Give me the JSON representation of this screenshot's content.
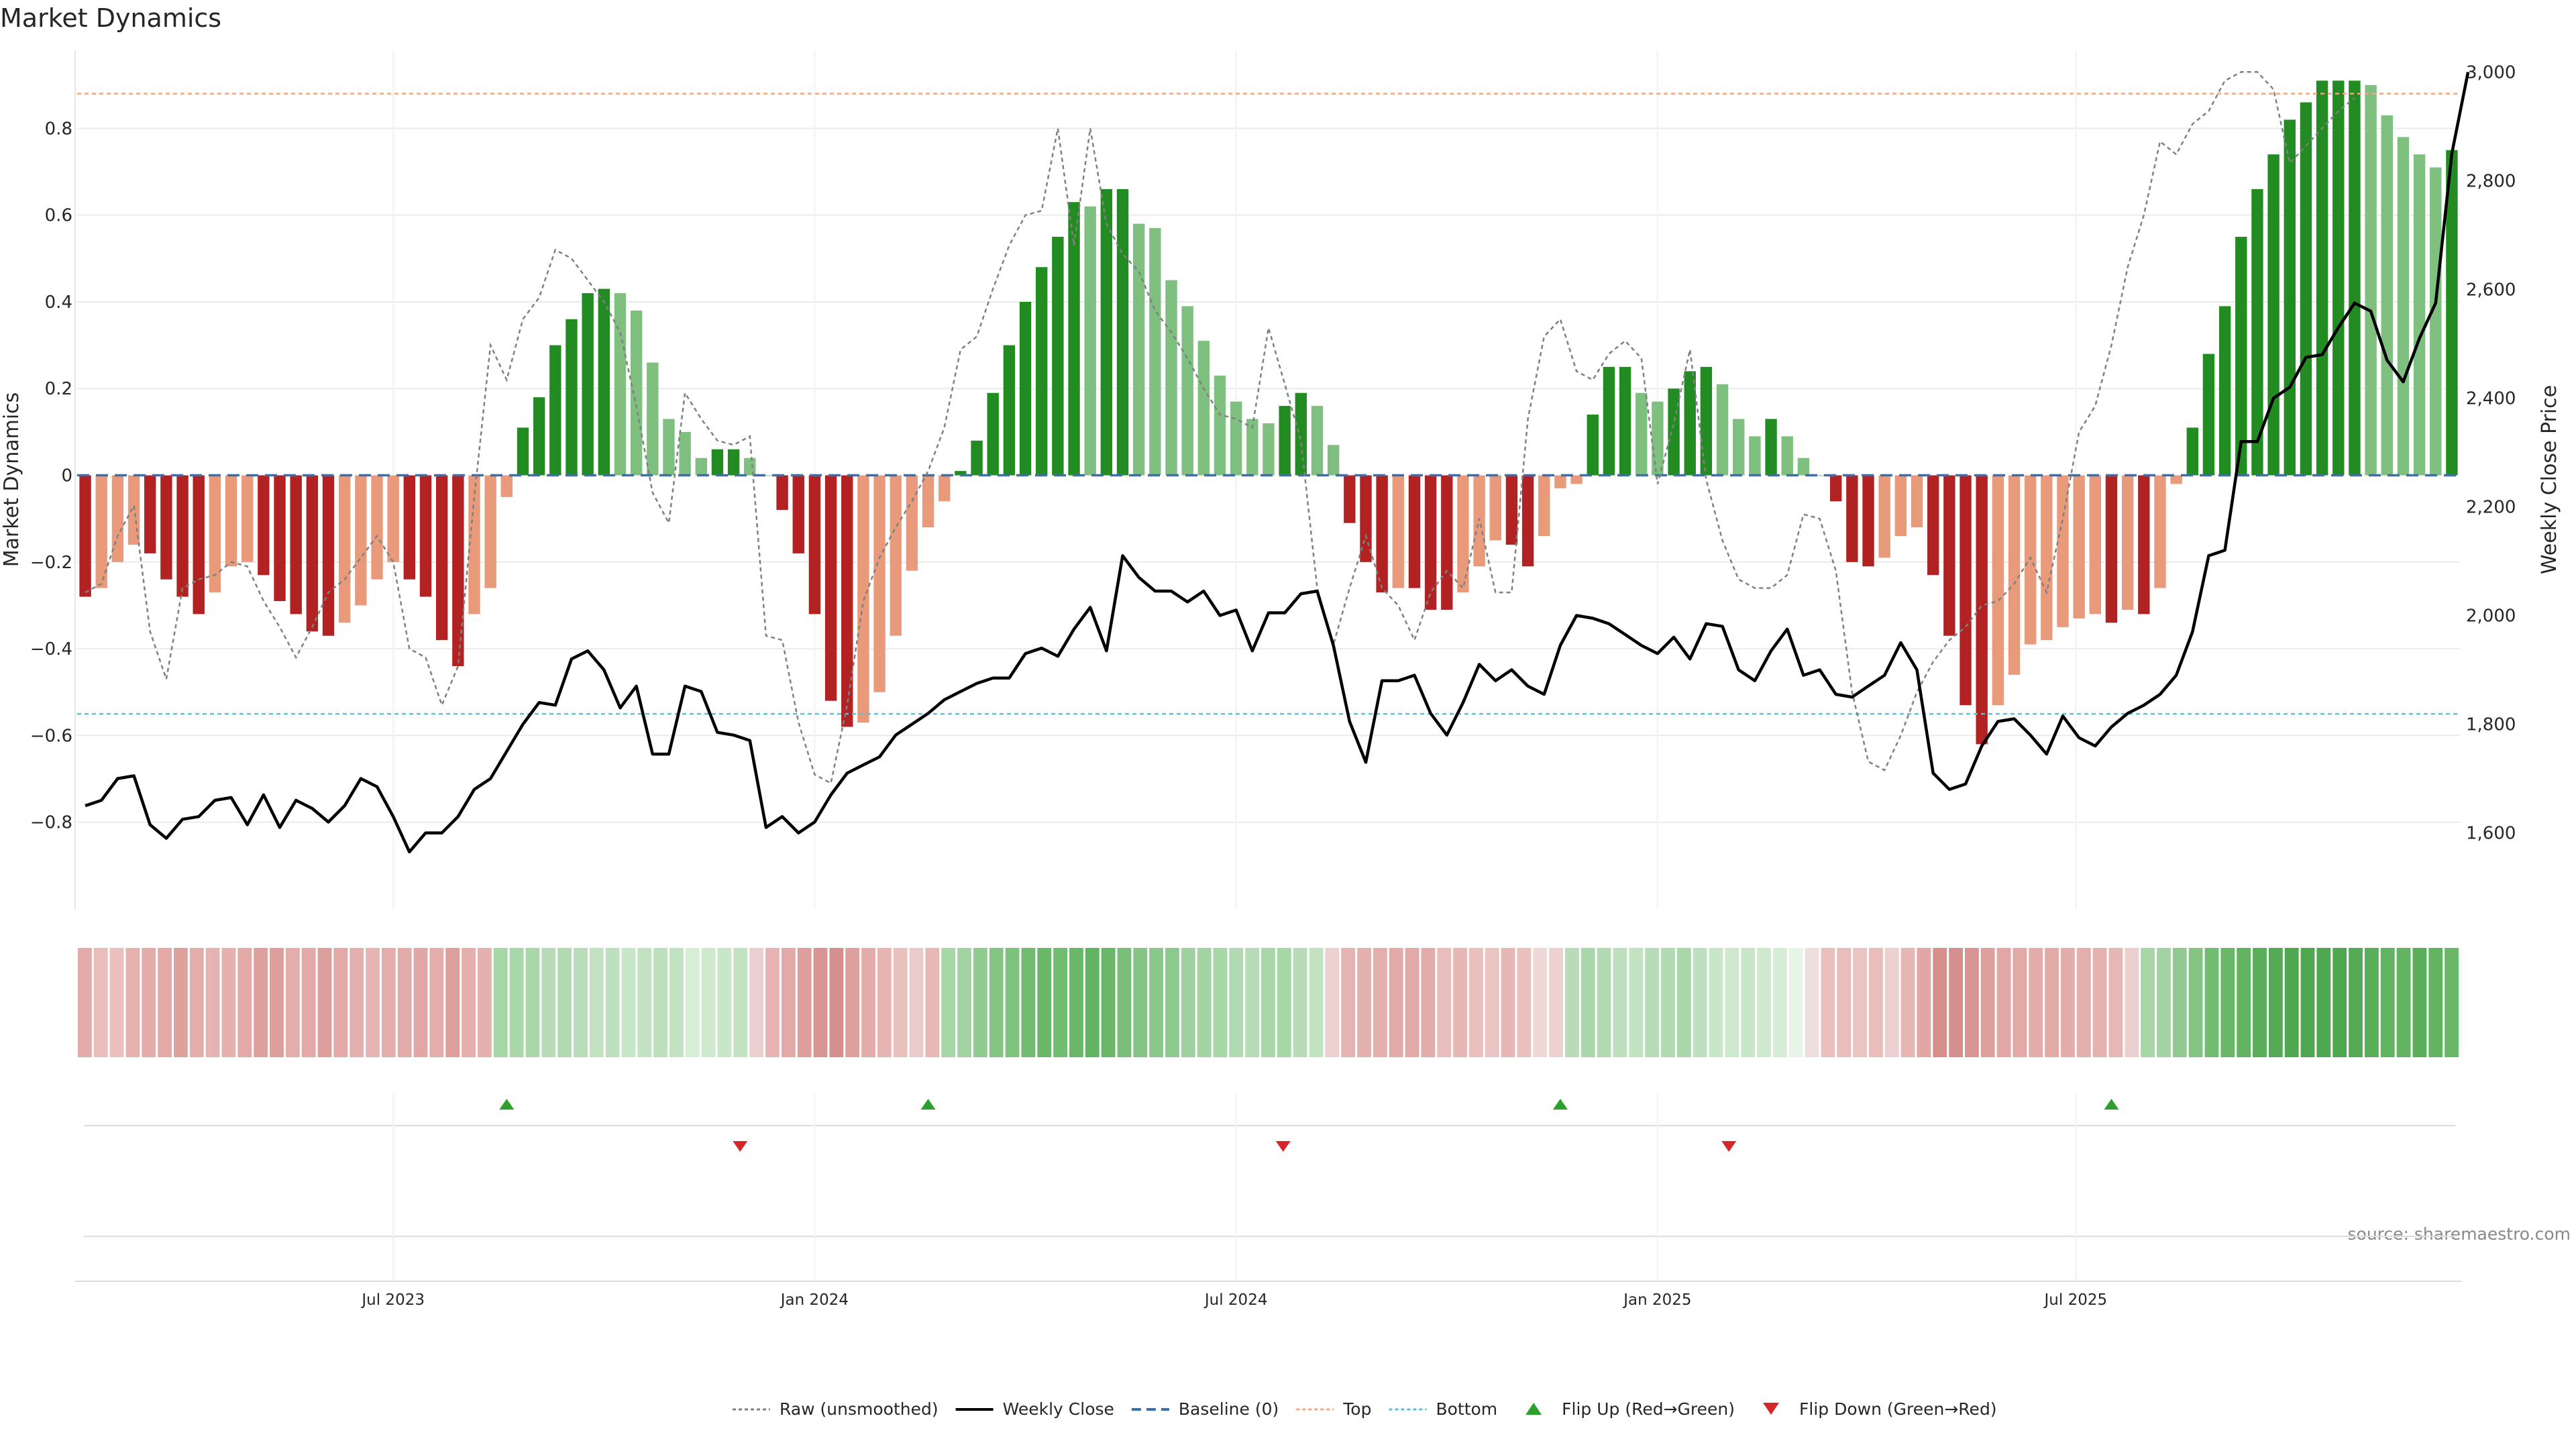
{
  "chart_data": {
    "type": "bar",
    "title": "Market Dynamics",
    "source": "source: sharemaestro.com",
    "ylabel_left": "Market Dynamics",
    "ylabel_right": "Weekly Close Price",
    "ylim_left": [
      -1.0,
      0.98
    ],
    "ylim_right": [
      1460,
      3040
    ],
    "left_ticks": [
      0.8,
      0.6,
      0.4,
      0.2,
      0,
      -0.2,
      -0.4,
      -0.6,
      -0.8
    ],
    "left_tick_labels": [
      "0.8",
      "0.6",
      "0.4",
      "0.2",
      "0",
      "−0.2",
      "−0.4",
      "−0.6",
      "−0.8"
    ],
    "right_ticks": [
      3000,
      2800,
      2600,
      2400,
      2200,
      2000,
      1800,
      1600
    ],
    "right_tick_labels": [
      "3,000",
      "2,800",
      "2,600",
      "2,400",
      "2,200",
      "2,000",
      "1,800",
      "1,600"
    ],
    "x_ticks": [
      {
        "label": "Jul 2023",
        "week": 19.5
      },
      {
        "label": "Jan 2024",
        "week": 45.5
      },
      {
        "label": "Jul 2024",
        "week": 71.5
      },
      {
        "label": "Jan 2025",
        "week": 97.5
      },
      {
        "label": "Jul 2025",
        "week": 123.3
      }
    ],
    "top_line": 0.88,
    "bottom_line": -0.55,
    "baseline": 0,
    "bar_values": [
      -0.28,
      -0.26,
      -0.2,
      -0.16,
      -0.18,
      -0.24,
      -0.28,
      -0.32,
      -0.27,
      -0.21,
      -0.2,
      -0.23,
      -0.29,
      -0.32,
      -0.36,
      -0.37,
      -0.34,
      -0.3,
      -0.24,
      -0.2,
      -0.24,
      -0.28,
      -0.38,
      -0.44,
      -0.32,
      -0.26,
      -0.05,
      0.11,
      0.18,
      0.3,
      0.36,
      0.42,
      0.43,
      0.42,
      0.38,
      0.26,
      0.13,
      0.1,
      0.04,
      0.06,
      0.06,
      0.04,
      0,
      -0.08,
      -0.18,
      -0.32,
      -0.52,
      -0.58,
      -0.57,
      -0.5,
      -0.37,
      -0.22,
      -0.12,
      -0.06,
      0.01,
      0.08,
      0.19,
      0.3,
      0.4,
      0.48,
      0.55,
      0.63,
      0.62,
      0.66,
      0.66,
      0.58,
      0.57,
      0.45,
      0.39,
      0.31,
      0.23,
      0.17,
      0.13,
      0.12,
      0.16,
      0.19,
      0.16,
      0.07,
      -0.11,
      -0.2,
      -0.27,
      -0.26,
      -0.26,
      -0.31,
      -0.31,
      -0.27,
      -0.21,
      -0.15,
      -0.16,
      -0.21,
      -0.14,
      -0.03,
      -0.02,
      0.14,
      0.25,
      0.25,
      0.19,
      0.17,
      0.2,
      0.24,
      0.25,
      0.21,
      0.13,
      0.09,
      0.13,
      0.09,
      0.04,
      0,
      -0.06,
      -0.2,
      -0.21,
      -0.19,
      -0.14,
      -0.12,
      -0.23,
      -0.37,
      -0.53,
      -0.62,
      -0.53,
      -0.46,
      -0.39,
      -0.38,
      -0.35,
      -0.33,
      -0.32,
      -0.34,
      -0.31,
      -0.32,
      -0.26,
      -0.02,
      0.11,
      0.28,
      0.39,
      0.55,
      0.66,
      0.74,
      0.82,
      0.86,
      0.91,
      0.91,
      0.91,
      0.9,
      0.83,
      0.78,
      0.74,
      0.71,
      0.75
    ],
    "raw_values": [
      -0.27,
      -0.25,
      -0.14,
      -0.07,
      -0.36,
      -0.47,
      -0.26,
      -0.24,
      -0.23,
      -0.2,
      -0.21,
      -0.29,
      -0.35,
      -0.42,
      -0.35,
      -0.27,
      -0.24,
      -0.19,
      -0.14,
      -0.2,
      -0.4,
      -0.42,
      -0.53,
      -0.44,
      -0.05,
      0.3,
      0.22,
      0.36,
      0.41,
      0.52,
      0.5,
      0.45,
      0.4,
      0.33,
      0.16,
      -0.04,
      -0.11,
      0.19,
      0.13,
      0.08,
      0.07,
      0.09,
      -0.37,
      -0.38,
      -0.57,
      -0.69,
      -0.71,
      -0.53,
      -0.29,
      -0.19,
      -0.12,
      -0.06,
      0.01,
      0.11,
      0.29,
      0.32,
      0.43,
      0.53,
      0.6,
      0.61,
      0.8,
      0.53,
      0.8,
      0.58,
      0.51,
      0.47,
      0.38,
      0.33,
      0.27,
      0.2,
      0.14,
      0.13,
      0.11,
      0.34,
      0.21,
      0.08,
      -0.26,
      -0.39,
      -0.26,
      -0.14,
      -0.26,
      -0.3,
      -0.38,
      -0.27,
      -0.22,
      -0.26,
      -0.1,
      -0.27,
      -0.27,
      0.13,
      0.32,
      0.36,
      0.24,
      0.22,
      0.28,
      0.31,
      0.27,
      -0.02,
      0.12,
      0.29,
      -0.01,
      -0.15,
      -0.24,
      -0.26,
      -0.26,
      -0.23,
      -0.09,
      -0.1,
      -0.22,
      -0.5,
      -0.66,
      -0.68,
      -0.6,
      -0.5,
      -0.43,
      -0.38,
      -0.35,
      -0.3,
      -0.29,
      -0.25,
      -0.19,
      -0.27,
      -0.1,
      0.1,
      0.16,
      0.3,
      0.48,
      0.6,
      0.77,
      0.74,
      0.81,
      0.84,
      0.91,
      0.93,
      0.93,
      0.89,
      0.72,
      0.76,
      0.8,
      0.84,
      0.87
    ],
    "weekly_close": [
      1650,
      1660,
      1700,
      1705,
      1615,
      1590,
      1625,
      1630,
      1660,
      1665,
      1615,
      1670,
      1610,
      1660,
      1645,
      1620,
      1650,
      1700,
      1685,
      1630,
      1565,
      1600,
      1600,
      1630,
      1680,
      1700,
      1750,
      1800,
      1840,
      1835,
      1920,
      1935,
      1900,
      1830,
      1870,
      1745,
      1745,
      1870,
      1860,
      1785,
      1780,
      1770,
      1610,
      1630,
      1600,
      1620,
      1670,
      1710,
      1725,
      1740,
      1780,
      1800,
      1820,
      1845,
      1860,
      1875,
      1885,
      1885,
      1930,
      1940,
      1925,
      1975,
      2015,
      1935,
      2110,
      2070,
      2045,
      2045,
      2025,
      2045,
      2000,
      2010,
      1935,
      2005,
      2005,
      2040,
      2045,
      1945,
      1805,
      1730,
      1880,
      1880,
      1890,
      1820,
      1780,
      1840,
      1910,
      1880,
      1900,
      1870,
      1855,
      1945,
      2000,
      1995,
      1985,
      1965,
      1945,
      1930,
      1960,
      1920,
      1985,
      1980,
      1900,
      1880,
      1935,
      1975,
      1890,
      1900,
      1855,
      1850,
      1870,
      1890,
      1950,
      1900,
      1710,
      1680,
      1690,
      1760,
      1805,
      1810,
      1780,
      1745,
      1815,
      1775,
      1760,
      1795,
      1820,
      1835,
      1855,
      1890,
      1970,
      2110,
      2120,
      2320,
      2320,
      2400,
      2420,
      2475,
      2480,
      2530,
      2575,
      2560,
      2470,
      2430,
      2510,
      2575,
      2850,
      3000
    ],
    "heatmap_colors": [
      "#e3aba9",
      "#e8bdbb",
      "#e9c0be",
      "#e5b2b0",
      "#e3acaa",
      "#e2a9a7",
      "#dda19e",
      "#e3adab",
      "#e5b3b1",
      "#e5b1af",
      "#e2a9a7",
      "#dda19e",
      "#dd9f9c",
      "#e3adab",
      "#e2a9a7",
      "#dd9f9c",
      "#e2a9a7",
      "#e4b0ae",
      "#e6b4b2",
      "#e3adab",
      "#e3acaa",
      "#e2a7a5",
      "#e3adab",
      "#dda09d",
      "#e4afad",
      "#e5b1af",
      "#a7d6a7",
      "#a9d7a9",
      "#abd8ab",
      "#b7dcb7",
      "#b2dab2",
      "#b9ddb9",
      "#c2e2c2",
      "#bfe0bf",
      "#c8e6c8",
      "#c2e2c2",
      "#bfe0bf",
      "#c2e2c2",
      "#d6eed6",
      "#cfe9cf",
      "#c8e6c8",
      "#c2e2c2",
      "#ebcfce",
      "#e6b4b2",
      "#e2a9a7",
      "#de9f9c",
      "#d89593",
      "#d58f8c",
      "#dea09e",
      "#e3acaa",
      "#e6b4b2",
      "#e9c0be",
      "#ebcbca",
      "#e7b8b6",
      "#a7d6a7",
      "#a3d3a3",
      "#91cb91",
      "#84c584",
      "#7ec27e",
      "#72bc72",
      "#6ab76a",
      "#72bc72",
      "#6ab76a",
      "#62b362",
      "#6ab76a",
      "#79bf79",
      "#84c584",
      "#8ac78a",
      "#8cc98c",
      "#9fd09f",
      "#a3d3a3",
      "#a7d6a7",
      "#b2dab2",
      "#b7dcb7",
      "#a9d7a9",
      "#a7d6a7",
      "#b7dcb7",
      "#c2e2c2",
      "#ecd1d0",
      "#e5b3b1",
      "#e5b1af",
      "#e4afad",
      "#e2a9a7",
      "#e2a9a7",
      "#e3acaa",
      "#e8bdbb",
      "#e6b7b5",
      "#e9c0be",
      "#eac4c2",
      "#e6b7b5",
      "#e9c0be",
      "#f0d8d7",
      "#ecd1d0",
      "#b7dcb7",
      "#a9d7a9",
      "#b2dab2",
      "#bfe0bf",
      "#c2e2c2",
      "#b7dcb7",
      "#b2dab2",
      "#a9d7a9",
      "#bfe0bf",
      "#c8e6c8",
      "#cfe9cf",
      "#c8e6c8",
      "#cfe9cf",
      "#d6eed6",
      "#e7f4e7",
      "#efdede",
      "#e9c0be",
      "#e8bdbb",
      "#eac4c2",
      "#e8bdbb",
      "#ecd1d0",
      "#e6b7b5",
      "#e2a7a5",
      "#d88f8c",
      "#d58f8c",
      "#d89593",
      "#dea09e",
      "#e2a7a5",
      "#e2a9a7",
      "#e3acaa",
      "#e2a9a7",
      "#e3adab",
      "#e4b0ae",
      "#e5b2b0",
      "#e6b7b5",
      "#ebcfce",
      "#a7d6a7",
      "#a3d3a3",
      "#91cb91",
      "#84c584",
      "#72bc72",
      "#6ab76a",
      "#62b362",
      "#5aae5a",
      "#55ab55",
      "#4fa84f",
      "#4fa84f",
      "#4fa84f",
      "#4fa84f",
      "#55ab55",
      "#5aae5a",
      "#62b362",
      "#62b362",
      "#5aae5a",
      "#62b362",
      "#6ab76a"
    ],
    "flips_up_weeks": [
      26.5,
      52.5,
      91.5,
      125.5
    ],
    "flips_down_weeks": [
      40.9,
      74.4,
      101.9
    ],
    "legend": [
      {
        "label": "Raw (unsmoothed)",
        "kind": "raw"
      },
      {
        "label": "Weekly Close",
        "kind": "close"
      },
      {
        "label": "Baseline (0)",
        "kind": "baseline"
      },
      {
        "label": "Top",
        "kind": "top"
      },
      {
        "label": "Bottom",
        "kind": "bottom"
      },
      {
        "label": "Flip Up (Red→Green)",
        "kind": "flipup"
      },
      {
        "label": "Flip Down (Green→Red)",
        "kind": "flipdown"
      }
    ],
    "colors": {
      "strong_green": "#228b22",
      "light_green": "#7fbf7f",
      "strong_red": "#b22222",
      "light_red": "#e89a7a",
      "raw_line": "#808080",
      "close_line": "#000000",
      "baseline": "#3a6fb0",
      "top": "#f4a582",
      "bottom": "#5bc0de",
      "flip_up": "#2ca02c",
      "flip_down": "#d62728",
      "grid": "#ebebeb",
      "text": "#262626",
      "source_text": "#888888"
    }
  }
}
